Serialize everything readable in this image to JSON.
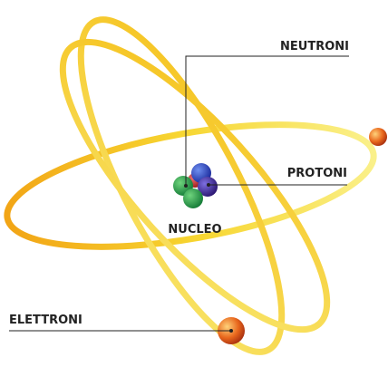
{
  "labels": {
    "neutrons": "NEUTRONI",
    "protons": "PROTONI",
    "nucleus": "NUCLEO",
    "electrons": "ELETTRONI"
  }
}
